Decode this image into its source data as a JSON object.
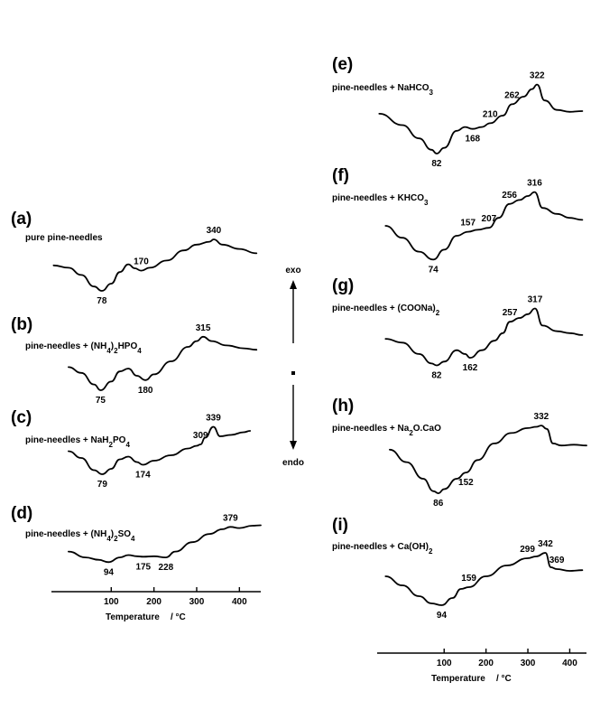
{
  "chart_data": [
    {
      "type": "line",
      "panel": "left",
      "xlabel": "Temperature",
      "xunit": "/ °C",
      "xticks": [
        100,
        200,
        300,
        400
      ],
      "xlim": [
        -40,
        450
      ],
      "series": [
        {
          "label": "(a)",
          "name": "pure pine-needles",
          "points": [
            [
              -35,
              0.12
            ],
            [
              0,
              0.2
            ],
            [
              30,
              0.45
            ],
            [
              60,
              0.85
            ],
            [
              78,
              1.0
            ],
            [
              100,
              0.75
            ],
            [
              120,
              0.35
            ],
            [
              140,
              0.08
            ],
            [
              155,
              0.22
            ],
            [
              170,
              0.3
            ],
            [
              190,
              0.2
            ],
            [
              230,
              -0.05
            ],
            [
              270,
              -0.4
            ],
            [
              300,
              -0.6
            ],
            [
              330,
              -0.7
            ],
            [
              340,
              -0.78
            ],
            [
              360,
              -0.6
            ],
            [
              400,
              -0.45
            ],
            [
              440,
              -0.3
            ]
          ],
          "peaks": [
            {
              "x": 78,
              "label": "78"
            },
            {
              "x": 170,
              "label": "170"
            },
            {
              "x": 340,
              "label": "340"
            }
          ]
        },
        {
          "label": "(b)",
          "name": "pine-needles + (NH4)2HPO4",
          "points": [
            [
              0,
              0.2
            ],
            [
              30,
              0.4
            ],
            [
              60,
              0.8
            ],
            [
              75,
              1.0
            ],
            [
              100,
              0.7
            ],
            [
              120,
              0.35
            ],
            [
              140,
              0.25
            ],
            [
              160,
              0.5
            ],
            [
              180,
              0.65
            ],
            [
              200,
              0.45
            ],
            [
              240,
              0.0
            ],
            [
              280,
              -0.5
            ],
            [
              300,
              -0.7
            ],
            [
              315,
              -0.85
            ],
            [
              335,
              -0.7
            ],
            [
              370,
              -0.55
            ],
            [
              410,
              -0.45
            ],
            [
              440,
              -0.4
            ]
          ],
          "peaks": [
            {
              "x": 75,
              "label": "75"
            },
            {
              "x": 180,
              "label": "180"
            },
            {
              "x": 315,
              "label": "315"
            }
          ]
        },
        {
          "label": "(c)",
          "name": "pine-needles + NaH2PO4",
          "points": [
            [
              0,
              0.15
            ],
            [
              30,
              0.4
            ],
            [
              60,
              0.85
            ],
            [
              79,
              1.0
            ],
            [
              100,
              0.8
            ],
            [
              120,
              0.45
            ],
            [
              140,
              0.35
            ],
            [
              160,
              0.55
            ],
            [
              174,
              0.65
            ],
            [
              200,
              0.5
            ],
            [
              240,
              0.3
            ],
            [
              280,
              0.05
            ],
            [
              300,
              -0.05
            ],
            [
              309,
              -0.1
            ],
            [
              320,
              -0.35
            ],
            [
              339,
              -0.75
            ],
            [
              355,
              -0.4
            ],
            [
              380,
              -0.45
            ],
            [
              410,
              -0.55
            ],
            [
              425,
              -0.6
            ]
          ],
          "peaks": [
            {
              "x": 79,
              "label": "79"
            },
            {
              "x": 174,
              "label": "174"
            },
            {
              "x": 309,
              "label": "309"
            },
            {
              "x": 339,
              "label": "339"
            }
          ]
        },
        {
          "label": "(d)",
          "name": "pine-needles + (NH4)2SO4",
          "points": [
            [
              0,
              0.1
            ],
            [
              40,
              0.35
            ],
            [
              70,
              0.45
            ],
            [
              94,
              0.55
            ],
            [
              120,
              0.35
            ],
            [
              140,
              0.25
            ],
            [
              160,
              0.3
            ],
            [
              175,
              0.32
            ],
            [
              200,
              0.3
            ],
            [
              228,
              0.35
            ],
            [
              250,
              0.1
            ],
            [
              290,
              -0.3
            ],
            [
              330,
              -0.65
            ],
            [
              360,
              -0.85
            ],
            [
              379,
              -0.95
            ],
            [
              400,
              -0.9
            ],
            [
              430,
              -1.0
            ],
            [
              450,
              -1.02
            ]
          ],
          "peaks": [
            {
              "x": 94,
              "label": "94"
            },
            {
              "x": 175,
              "label": "175"
            },
            {
              "x": 228,
              "label": "228"
            },
            {
              "x": 379,
              "label": "379"
            }
          ]
        }
      ]
    },
    {
      "type": "line",
      "panel": "right",
      "xlabel": "Temperature",
      "xunit": "/ °C",
      "xticks": [
        100,
        200,
        300,
        400
      ],
      "xlim": [
        -60,
        440
      ],
      "series": [
        {
          "label": "(e)",
          "name": "pine-needles + NaHCO3",
          "points": [
            [
              -55,
              -0.05
            ],
            [
              0,
              0.25
            ],
            [
              40,
              0.6
            ],
            [
              70,
              0.9
            ],
            [
              82,
              1.0
            ],
            [
              100,
              0.85
            ],
            [
              130,
              0.4
            ],
            [
              150,
              0.3
            ],
            [
              168,
              0.35
            ],
            [
              190,
              0.3
            ],
            [
              210,
              0.2
            ],
            [
              240,
              0.0
            ],
            [
              262,
              -0.3
            ],
            [
              290,
              -0.5
            ],
            [
              310,
              -0.7
            ],
            [
              322,
              -0.82
            ],
            [
              340,
              -0.4
            ],
            [
              370,
              -0.15
            ],
            [
              400,
              -0.1
            ],
            [
              430,
              -0.12
            ]
          ],
          "peaks": [
            {
              "x": 82,
              "label": "82"
            },
            {
              "x": 168,
              "label": "168"
            },
            {
              "x": 210,
              "label": "210"
            },
            {
              "x": 262,
              "label": "262"
            },
            {
              "x": 322,
              "label": "322"
            }
          ]
        },
        {
          "label": "(f)",
          "name": "pine-needles + KHCO3",
          "points": [
            [
              -40,
              0.0
            ],
            [
              0,
              0.3
            ],
            [
              40,
              0.65
            ],
            [
              74,
              0.85
            ],
            [
              100,
              0.6
            ],
            [
              130,
              0.25
            ],
            [
              157,
              0.15
            ],
            [
              180,
              0.1
            ],
            [
              207,
              0.05
            ],
            [
              230,
              -0.2
            ],
            [
              256,
              -0.55
            ],
            [
              280,
              -0.65
            ],
            [
              300,
              -0.75
            ],
            [
              316,
              -0.85
            ],
            [
              335,
              -0.45
            ],
            [
              370,
              -0.3
            ],
            [
              400,
              -0.2
            ],
            [
              430,
              -0.15
            ]
          ],
          "peaks": [
            {
              "x": 74,
              "label": "74"
            },
            {
              "x": 157,
              "label": "157"
            },
            {
              "x": 207,
              "label": "207"
            },
            {
              "x": 256,
              "label": "256"
            },
            {
              "x": 316,
              "label": "316"
            }
          ]
        },
        {
          "label": "(g)",
          "name": "pine-needles + (COONa)2",
          "points": [
            [
              -40,
              0.05
            ],
            [
              0,
              0.15
            ],
            [
              40,
              0.45
            ],
            [
              70,
              0.7
            ],
            [
              82,
              0.75
            ],
            [
              100,
              0.65
            ],
            [
              130,
              0.35
            ],
            [
              150,
              0.45
            ],
            [
              162,
              0.55
            ],
            [
              190,
              0.35
            ],
            [
              220,
              0.1
            ],
            [
              240,
              -0.1
            ],
            [
              257,
              -0.4
            ],
            [
              280,
              -0.5
            ],
            [
              300,
              -0.6
            ],
            [
              317,
              -0.75
            ],
            [
              335,
              -0.3
            ],
            [
              370,
              -0.15
            ],
            [
              400,
              -0.1
            ],
            [
              430,
              -0.05
            ]
          ],
          "peaks": [
            {
              "x": 82,
              "label": "82"
            },
            {
              "x": 162,
              "label": "162"
            },
            {
              "x": 257,
              "label": "257"
            },
            {
              "x": 317,
              "label": "317"
            }
          ]
        },
        {
          "label": "(h)",
          "name": "pine-needles + Na2O.CaO",
          "points": [
            [
              -30,
              -0.2
            ],
            [
              10,
              0.1
            ],
            [
              50,
              0.5
            ],
            [
              75,
              0.8
            ],
            [
              86,
              0.85
            ],
            [
              100,
              0.75
            ],
            [
              130,
              0.5
            ],
            [
              152,
              0.35
            ],
            [
              180,
              0.05
            ],
            [
              220,
              -0.35
            ],
            [
              260,
              -0.6
            ],
            [
              300,
              -0.72
            ],
            [
              320,
              -0.75
            ],
            [
              332,
              -0.78
            ],
            [
              345,
              -0.7
            ],
            [
              360,
              -0.35
            ],
            [
              380,
              -0.3
            ],
            [
              410,
              -0.32
            ],
            [
              440,
              -0.3
            ]
          ],
          "peaks": [
            {
              "x": 86,
              "label": "86"
            },
            {
              "x": 152,
              "label": "152"
            },
            {
              "x": 332,
              "label": "332"
            }
          ]
        },
        {
          "label": "(i)",
          "name": "pine-needles + Ca(OH)2",
          "points": [
            [
              -40,
              -0.05
            ],
            [
              0,
              0.2
            ],
            [
              40,
              0.5
            ],
            [
              70,
              0.7
            ],
            [
              94,
              0.75
            ],
            [
              120,
              0.55
            ],
            [
              140,
              0.3
            ],
            [
              159,
              0.25
            ],
            [
              200,
              -0.05
            ],
            [
              250,
              -0.35
            ],
            [
              299,
              -0.55
            ],
            [
              320,
              -0.6
            ],
            [
              342,
              -0.7
            ],
            [
              355,
              -0.3
            ],
            [
              369,
              -0.25
            ],
            [
              400,
              -0.2
            ],
            [
              430,
              -0.22
            ]
          ],
          "peaks": [
            {
              "x": 94,
              "label": "94"
            },
            {
              "x": 159,
              "label": "159"
            },
            {
              "x": 299,
              "label": "299"
            },
            {
              "x": 342,
              "label": "342"
            },
            {
              "x": 369,
              "label": "369"
            }
          ]
        }
      ]
    }
  ],
  "arrow": {
    "up_label": "exo",
    "down_label": "endo"
  }
}
